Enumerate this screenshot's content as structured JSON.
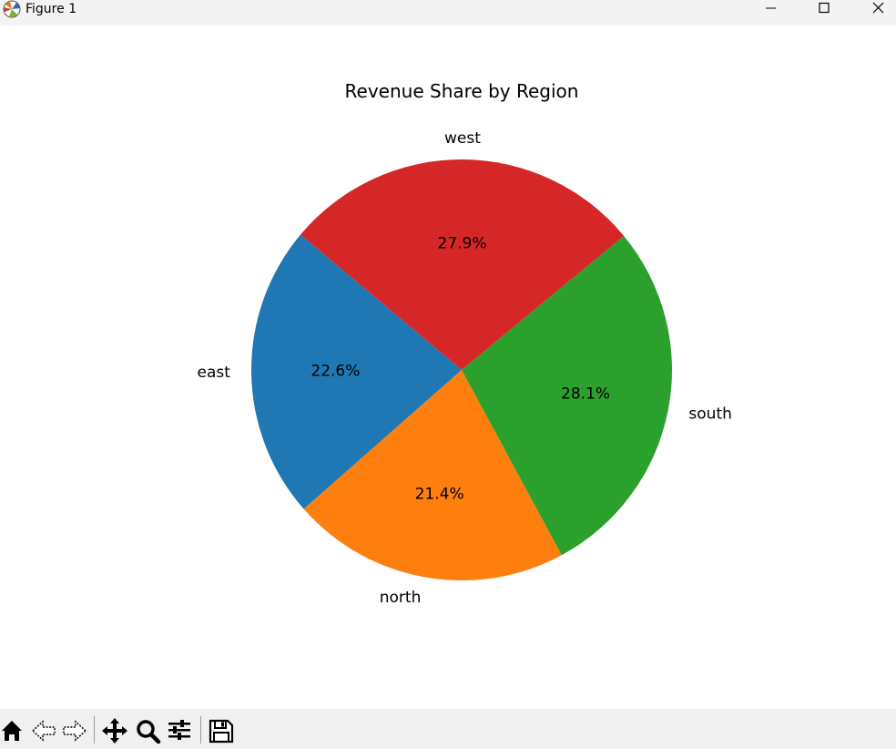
{
  "window": {
    "title": "Figure 1"
  },
  "toolbar": {
    "buttons": [
      "home",
      "back",
      "forward",
      "pan",
      "zoom",
      "configure-subplots",
      "save"
    ]
  },
  "chart_data": {
    "type": "pie",
    "title": "Revenue Share by Region",
    "labels": [
      "east",
      "north",
      "south",
      "west"
    ],
    "values": [
      22.6,
      21.4,
      28.1,
      27.9
    ],
    "pct_labels": [
      "22.6%",
      "21.4%",
      "28.1%",
      "27.9%"
    ],
    "colors": [
      "#1f77b4",
      "#ff7f0e",
      "#2ca02c",
      "#d62728"
    ],
    "start_angle": 140,
    "counterclock": true
  }
}
